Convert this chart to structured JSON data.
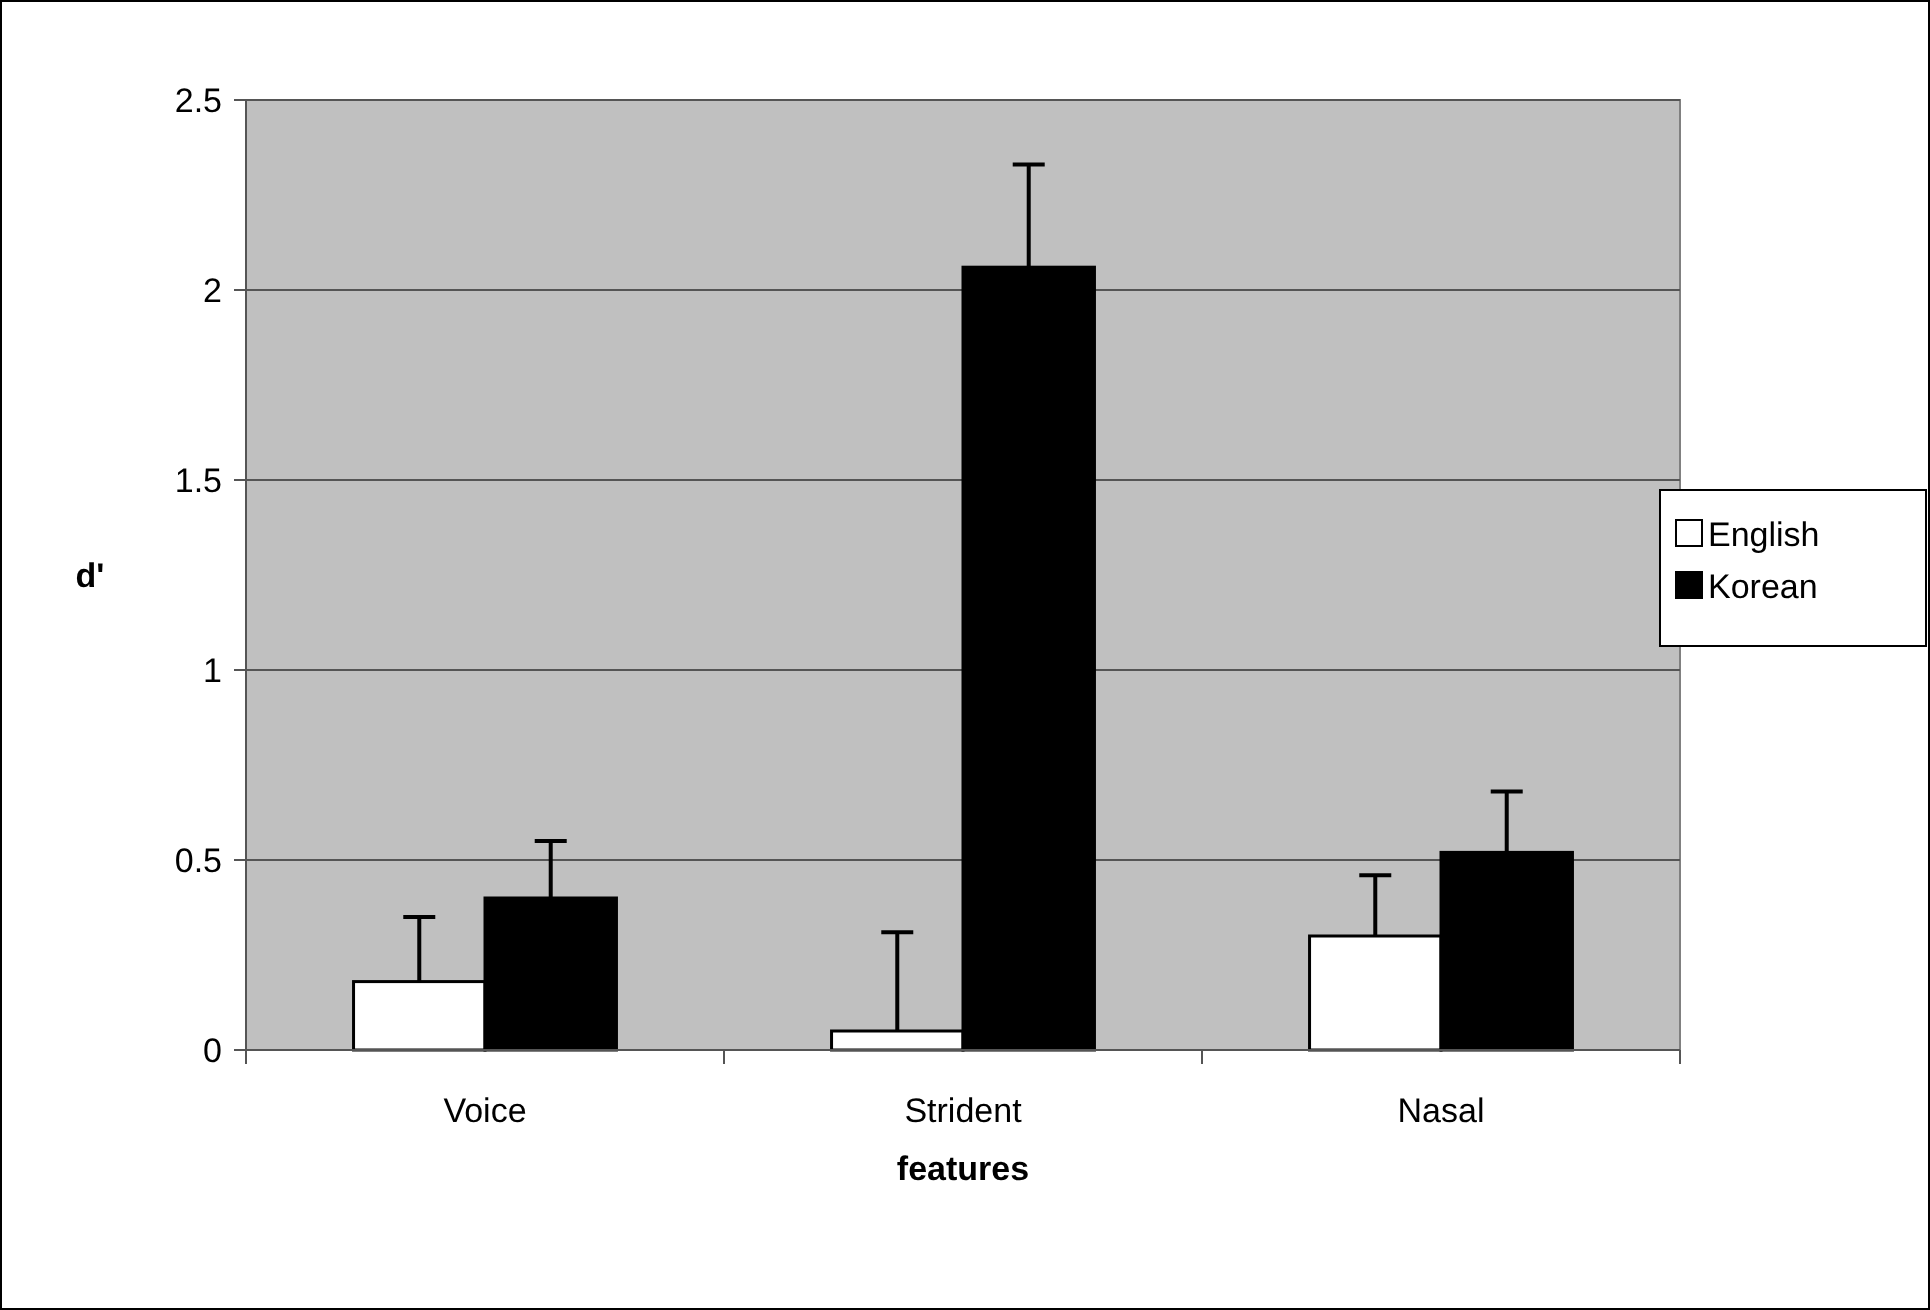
{
  "chart_data": {
    "type": "bar",
    "xlabel": "features",
    "ylabel": "d'",
    "categories": [
      "Voice",
      "Strident",
      "Nasal"
    ],
    "series": [
      {
        "name": "English",
        "color": "#ffffff",
        "values": [
          0.18,
          0.05,
          0.3
        ],
        "errors": [
          [
            0.18,
            0.35
          ],
          [
            0.05,
            0.31
          ],
          [
            0.3,
            0.46
          ]
        ]
      },
      {
        "name": "Korean",
        "color": "#000000",
        "values": [
          0.4,
          2.06,
          0.52
        ],
        "errors": [
          [
            0.4,
            0.55
          ],
          [
            2.06,
            2.33
          ],
          [
            0.52,
            0.68
          ]
        ]
      }
    ],
    "ylim": [
      0,
      2.5
    ],
    "yticks": [
      0,
      0.5,
      1,
      1.5,
      2,
      2.5
    ],
    "grid": "y",
    "legend": "right"
  }
}
